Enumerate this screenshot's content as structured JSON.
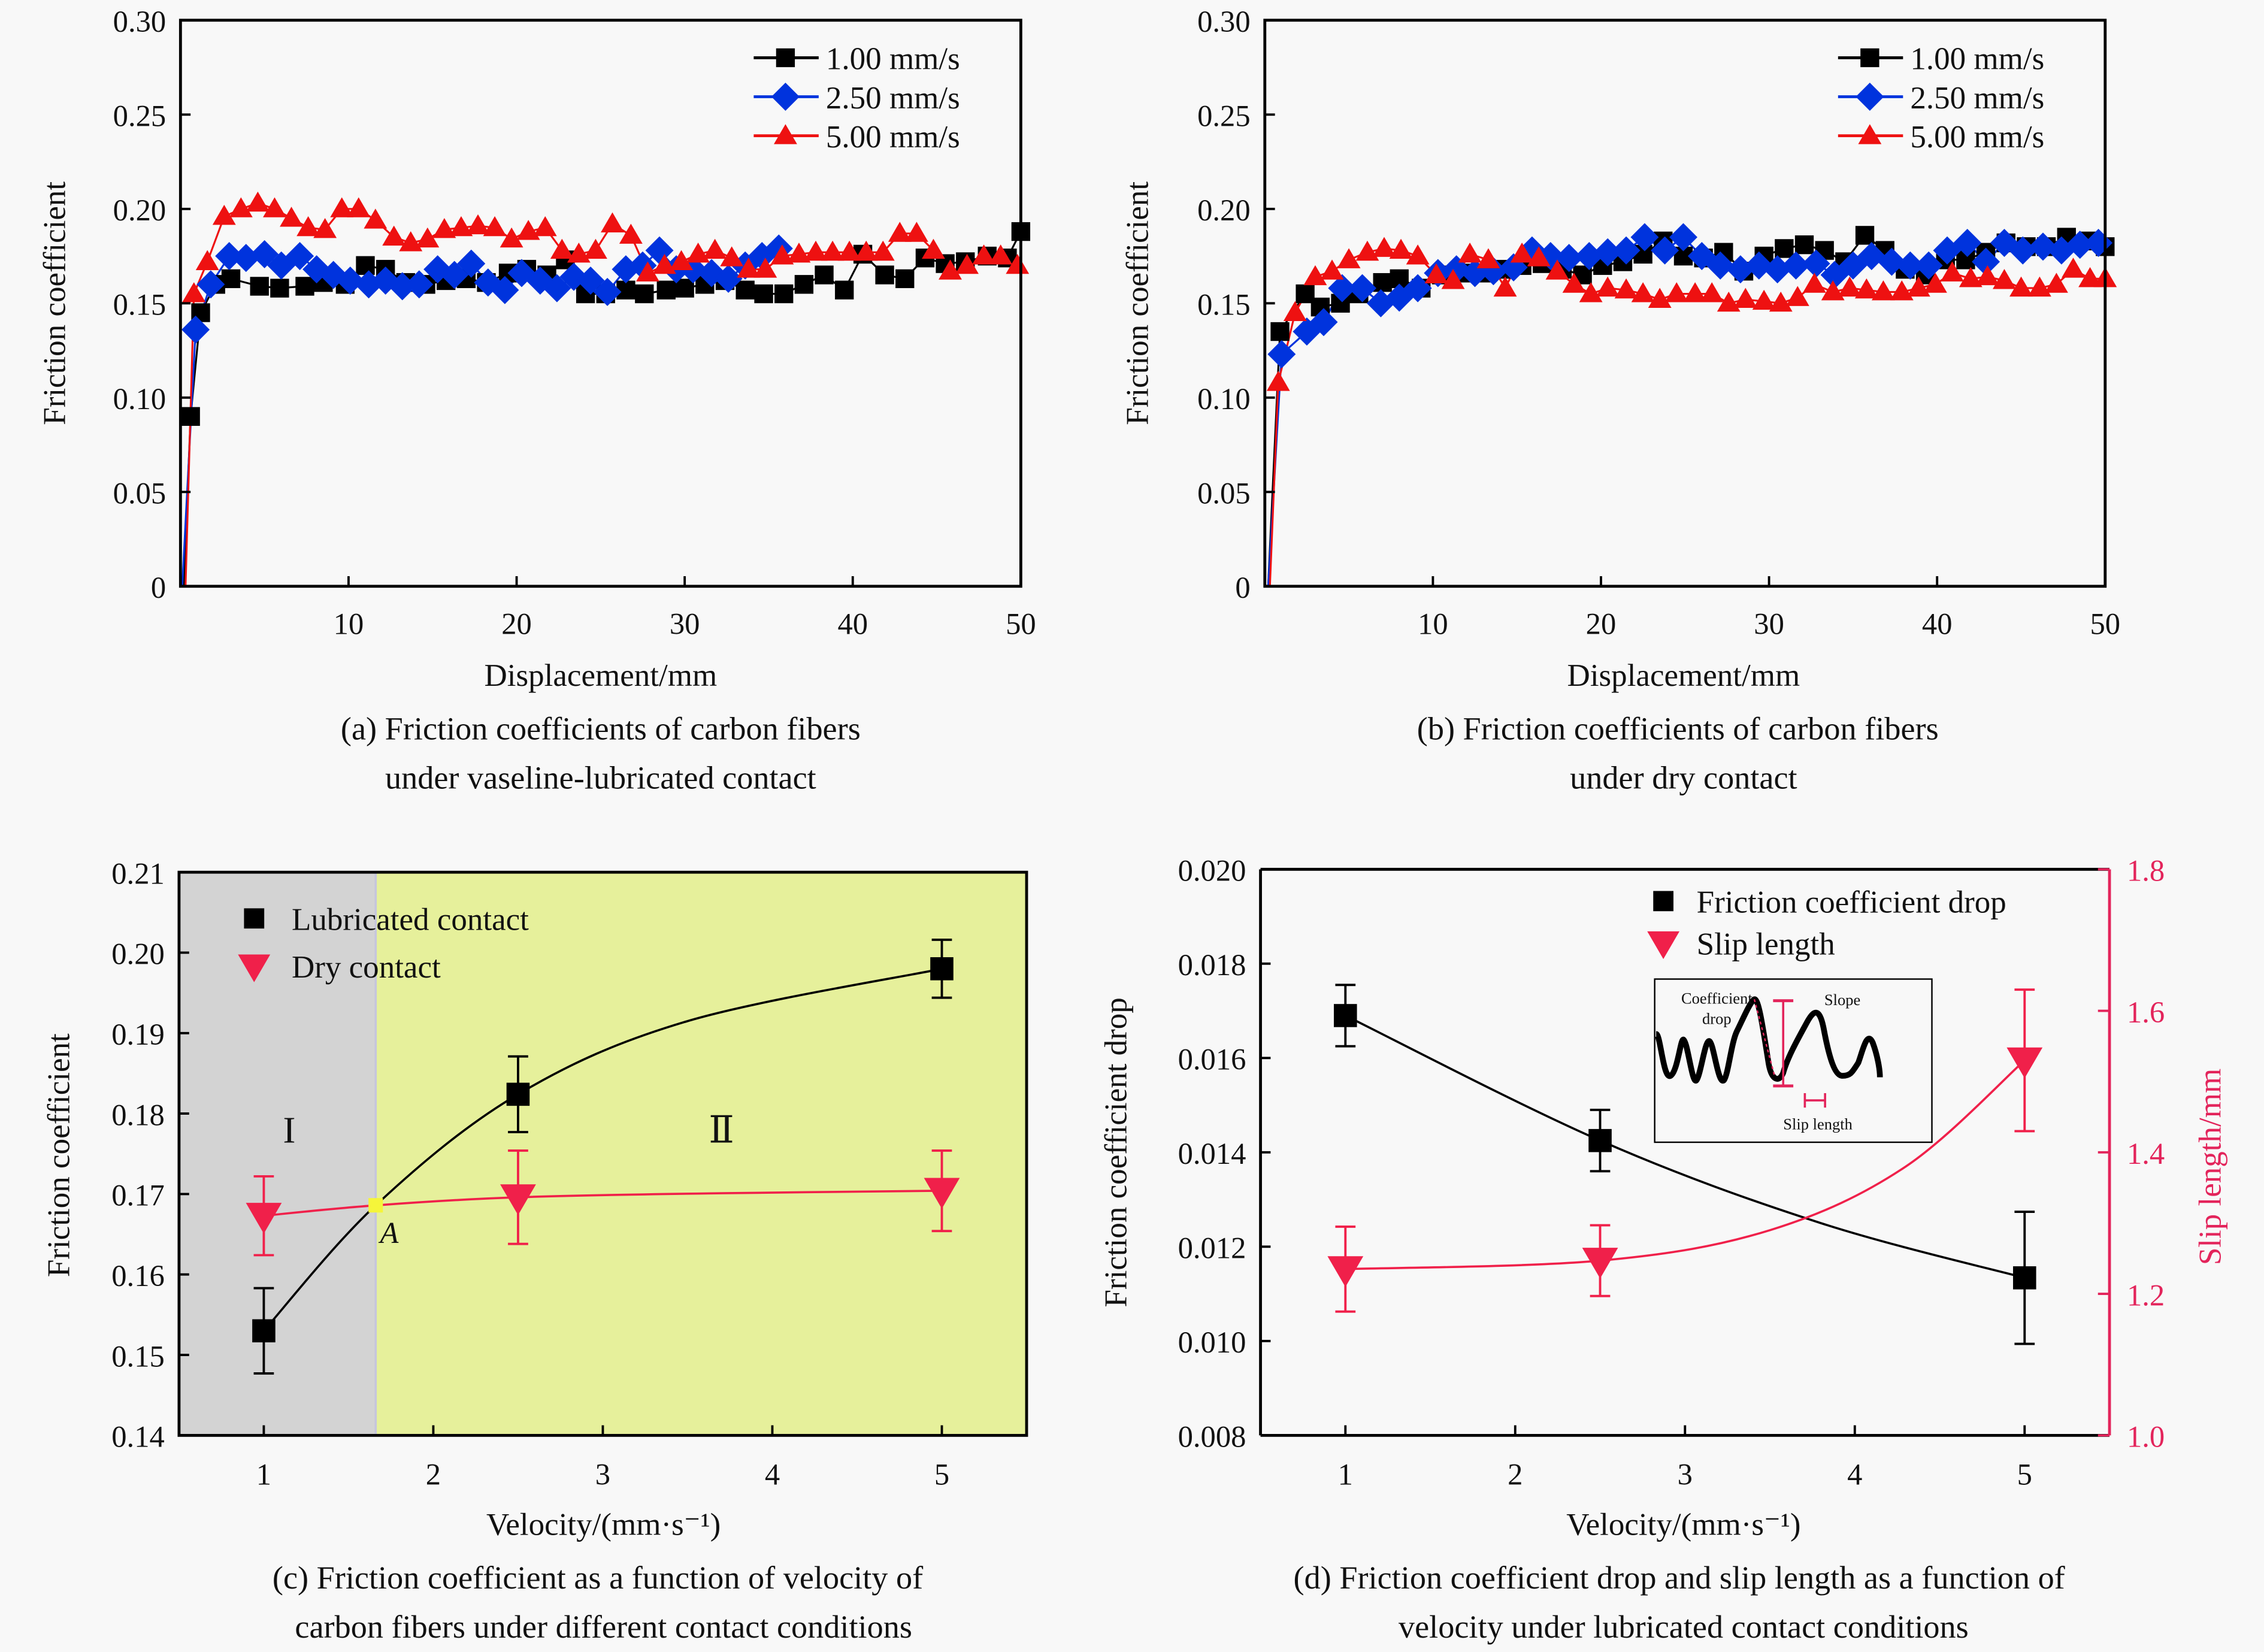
{
  "figure": {
    "background": "#f8f8f8",
    "captions": {
      "a": [
        "(a) Friction coefficients of carbon fibers",
        "under vaseline-lubricated contact"
      ],
      "b": [
        "(b) Friction coefficients of carbon fibers",
        "under dry contact"
      ],
      "c": [
        "(c) Friction coefficient as a function of velocity of",
        "carbon fibers under different contact conditions"
      ],
      "d": [
        "(d) Friction coefficient drop and slip length as a function of",
        "velocity under lubricated contact conditions"
      ]
    }
  },
  "chart_data": [
    {
      "id": "a",
      "type": "line",
      "title": "(a) Friction coefficients of carbon fibers under vaseline-lubricated contact",
      "xlabel": "Displacement/mm",
      "ylabel": "Friction coefficient",
      "xlim": [
        0,
        50
      ],
      "ylim": [
        0,
        0.3
      ],
      "xticks": [
        "10",
        "20",
        "30",
        "40",
        "50"
      ],
      "yticks": [
        "0",
        "0.05",
        "0.10",
        "0.15",
        "0.20",
        "0.25",
        "0.30"
      ],
      "legend_position": "top-right",
      "grid": false,
      "series": [
        {
          "name": "1.00 mm/s",
          "color": "#000000",
          "marker": "square",
          "x": [
            0.2,
            0.6,
            1.2,
            2.1,
            3.0,
            4.7,
            5.9,
            7.4,
            8.5,
            9.8,
            11.0,
            12.2,
            13.4,
            14.6,
            15.8,
            17.0,
            18.2,
            19.5,
            20.6,
            21.8,
            22.9,
            24.1,
            25.3,
            26.5,
            27.6,
            28.9,
            30.0,
            31.2,
            32.4,
            33.6,
            34.7,
            35.9,
            37.1,
            38.3,
            39.5,
            40.6,
            41.9,
            43.1,
            44.3,
            45.5,
            46.7,
            48.0,
            49.2,
            50.0
          ],
          "y": [
            0.0,
            0.09,
            0.145,
            0.16,
            0.163,
            0.159,
            0.158,
            0.159,
            0.161,
            0.16,
            0.17,
            0.168,
            0.161,
            0.16,
            0.162,
            0.163,
            0.161,
            0.166,
            0.168,
            0.165,
            0.173,
            0.155,
            0.155,
            0.157,
            0.155,
            0.157,
            0.158,
            0.16,
            0.162,
            0.157,
            0.155,
            0.155,
            0.16,
            0.165,
            0.157,
            0.176,
            0.165,
            0.163,
            0.174,
            0.171,
            0.172,
            0.175,
            0.174,
            0.188
          ]
        },
        {
          "name": "2.50 mm/s",
          "color": "#0033dd",
          "marker": "diamond",
          "x": [
            0.1,
            0.9,
            1.8,
            2.9,
            3.9,
            5.0,
            6.0,
            7.1,
            8.1,
            9.1,
            10.1,
            11.2,
            12.2,
            13.2,
            14.2,
            15.3,
            16.3,
            17.3,
            18.3,
            19.3,
            20.3,
            21.4,
            22.4,
            23.4,
            24.4,
            25.4,
            26.5,
            27.5,
            28.5,
            29.5,
            30.5,
            31.6,
            32.6,
            33.6,
            34.6,
            35.6
          ],
          "y": [
            0.0,
            0.136,
            0.16,
            0.175,
            0.174,
            0.176,
            0.17,
            0.175,
            0.168,
            0.165,
            0.162,
            0.16,
            0.162,
            0.159,
            0.16,
            0.168,
            0.165,
            0.171,
            0.161,
            0.157,
            0.166,
            0.162,
            0.158,
            0.164,
            0.162,
            0.156,
            0.168,
            0.17,
            0.178,
            0.168,
            0.168,
            0.166,
            0.163,
            0.17,
            0.175,
            0.179
          ]
        },
        {
          "name": "5.00 mm/s",
          "color": "#ee1111",
          "marker": "triangle-up",
          "x": [
            0.3,
            0.8,
            1.6,
            2.6,
            3.6,
            4.6,
            5.6,
            6.6,
            7.6,
            8.6,
            9.6,
            10.6,
            11.6,
            12.7,
            13.7,
            14.7,
            15.7,
            16.7,
            17.7,
            18.7,
            19.7,
            20.7,
            21.7,
            22.7,
            23.7,
            24.7,
            25.7,
            26.8,
            27.8,
            28.8,
            29.8,
            30.8,
            31.8,
            32.8,
            33.8,
            34.8,
            35.8,
            36.8,
            37.8,
            38.8,
            39.8,
            40.8,
            41.8,
            42.8,
            43.8,
            44.8,
            45.8,
            46.8,
            47.8,
            48.8,
            49.8
          ],
          "y": [
            0.0,
            0.155,
            0.172,
            0.196,
            0.2,
            0.203,
            0.2,
            0.195,
            0.19,
            0.189,
            0.2,
            0.2,
            0.194,
            0.185,
            0.182,
            0.184,
            0.189,
            0.19,
            0.191,
            0.19,
            0.184,
            0.188,
            0.19,
            0.178,
            0.176,
            0.178,
            0.192,
            0.186,
            0.166,
            0.17,
            0.172,
            0.176,
            0.178,
            0.174,
            0.168,
            0.168,
            0.175,
            0.176,
            0.177,
            0.177,
            0.177,
            0.177,
            0.177,
            0.187,
            0.187,
            0.178,
            0.167,
            0.17,
            0.175,
            0.175,
            0.17
          ]
        }
      ]
    },
    {
      "id": "b",
      "type": "line",
      "title": "(b) Friction coefficients of carbon fibers under dry contact",
      "xlabel": "Displacement/mm",
      "ylabel": "Friction coefficient",
      "xlim": [
        0,
        50
      ],
      "ylim": [
        0,
        0.3
      ],
      "xticks": [
        "10",
        "20",
        "30",
        "40",
        "50"
      ],
      "yticks": [
        "0",
        "0.05",
        "0.10",
        "0.15",
        "0.20",
        "0.25",
        "0.30"
      ],
      "legend_position": "top-right",
      "grid": false,
      "series": [
        {
          "name": "1.00 mm/s",
          "color": "#000000",
          "marker": "square",
          "x": [
            0.2,
            0.9,
            2.4,
            3.3,
            4.5,
            5.6,
            7.0,
            8.0,
            9.3,
            10.5,
            11.7,
            12.9,
            14.1,
            15.3,
            16.5,
            17.7,
            18.9,
            20.1,
            21.3,
            22.5,
            23.7,
            24.9,
            26.1,
            27.3,
            28.5,
            29.7,
            30.9,
            32.1,
            33.3,
            34.5,
            35.7,
            36.9,
            38.1,
            39.3,
            40.5,
            41.7,
            42.9,
            44.1,
            45.3,
            46.5,
            47.7,
            49.0,
            50.0
          ],
          "y": [
            0.0,
            0.135,
            0.155,
            0.148,
            0.15,
            0.155,
            0.161,
            0.163,
            0.158,
            0.165,
            0.166,
            0.166,
            0.168,
            0.17,
            0.171,
            0.168,
            0.165,
            0.17,
            0.172,
            0.176,
            0.183,
            0.175,
            0.174,
            0.177,
            0.167,
            0.175,
            0.179,
            0.181,
            0.178,
            0.172,
            0.186,
            0.178,
            0.168,
            0.165,
            0.173,
            0.173,
            0.177,
            0.182,
            0.18,
            0.18,
            0.185,
            0.183,
            0.18
          ]
        },
        {
          "name": "2.50 mm/s",
          "color": "#0033dd",
          "marker": "diamond",
          "x": [
            0.2,
            1.0,
            2.5,
            3.5,
            4.6,
            5.8,
            6.9,
            8.0,
            9.1,
            10.3,
            11.4,
            12.5,
            13.6,
            14.8,
            15.9,
            17.0,
            18.1,
            19.3,
            20.4,
            21.5,
            22.6,
            23.8,
            24.9,
            26.0,
            27.1,
            28.3,
            29.4,
            30.5,
            31.6,
            32.8,
            33.9,
            35.0,
            36.1,
            37.3,
            38.4,
            39.5,
            40.6,
            41.8,
            42.9,
            44.0,
            45.1,
            46.3,
            47.4,
            48.5,
            49.6
          ],
          "y": [
            0.0,
            0.123,
            0.135,
            0.14,
            0.158,
            0.158,
            0.15,
            0.153,
            0.158,
            0.166,
            0.168,
            0.166,
            0.167,
            0.169,
            0.178,
            0.175,
            0.174,
            0.175,
            0.177,
            0.178,
            0.185,
            0.178,
            0.185,
            0.175,
            0.17,
            0.168,
            0.17,
            0.168,
            0.17,
            0.171,
            0.165,
            0.17,
            0.175,
            0.172,
            0.17,
            0.17,
            0.178,
            0.182,
            0.172,
            0.182,
            0.178,
            0.18,
            0.178,
            0.181,
            0.182
          ]
        },
        {
          "name": "5.00 mm/s",
          "color": "#ee1111",
          "marker": "triangle-up",
          "x": [
            0.3,
            0.8,
            1.8,
            3.0,
            4.0,
            5.0,
            6.1,
            7.1,
            8.1,
            9.1,
            10.2,
            11.2,
            12.2,
            13.3,
            14.3,
            15.3,
            16.3,
            17.4,
            18.4,
            19.4,
            20.4,
            21.5,
            22.5,
            23.5,
            24.5,
            25.6,
            26.6,
            27.6,
            28.6,
            29.7,
            30.7,
            31.7,
            32.7,
            33.8,
            34.8,
            35.8,
            36.8,
            37.9,
            38.9,
            39.9,
            40.9,
            42.0,
            43.0,
            44.0,
            45.0,
            46.1,
            47.1,
            48.1,
            49.1,
            50.0
          ],
          "y": [
            0.0,
            0.108,
            0.145,
            0.164,
            0.167,
            0.173,
            0.177,
            0.179,
            0.178,
            0.175,
            0.165,
            0.162,
            0.176,
            0.173,
            0.158,
            0.176,
            0.174,
            0.167,
            0.16,
            0.155,
            0.158,
            0.157,
            0.155,
            0.152,
            0.155,
            0.155,
            0.155,
            0.15,
            0.152,
            0.151,
            0.15,
            0.153,
            0.16,
            0.156,
            0.158,
            0.157,
            0.156,
            0.156,
            0.158,
            0.16,
            0.166,
            0.163,
            0.164,
            0.162,
            0.158,
            0.158,
            0.16,
            0.168,
            0.163,
            0.163
          ]
        }
      ]
    },
    {
      "id": "c",
      "type": "scatter",
      "title": "(c) Friction coefficient as a function of velocity of carbon fibers under different contact conditions",
      "xlabel": "Velocity/(mm·s⁻¹)",
      "ylabel": "Friction coefficient",
      "xlim": [
        0.5,
        5.5
      ],
      "ylim": [
        0.14,
        0.21
      ],
      "xticks": [
        "1",
        "2",
        "3",
        "4",
        "5"
      ],
      "yticks": [
        "0.14",
        "0.15",
        "0.16",
        "0.17",
        "0.18",
        "0.19",
        "0.20",
        "0.21"
      ],
      "legend_position": "top-left",
      "grid": false,
      "regions": [
        {
          "label": "I",
          "x_from": 0.5,
          "x_to": 1.66,
          "color": "#d3d3d3",
          "label_x": 1.15,
          "label_y": 0.178
        },
        {
          "label": "Ⅱ",
          "x_from": 1.66,
          "x_to": 5.5,
          "color": "#e6f09b",
          "label_x": 3.7,
          "label_y": 0.178
        }
      ],
      "annotations": [
        {
          "text": "A",
          "x": 1.66,
          "y": 0.1686,
          "color": "#f5f53a"
        }
      ],
      "series": [
        {
          "name": "Lubricated contact",
          "color": "#000000",
          "marker": "square",
          "x": [
            1,
            2.5,
            5
          ],
          "y": [
            0.153,
            0.1824,
            0.198
          ],
          "err": [
            0.0053,
            0.0047,
            0.0036
          ],
          "fit": "saturating"
        },
        {
          "name": "Dry contact",
          "color": "#f0204a",
          "marker": "triangle-down",
          "x": [
            1,
            2.5,
            5
          ],
          "y": [
            0.1673,
            0.1696,
            0.1704
          ],
          "err": [
            0.0049,
            0.0058,
            0.005
          ],
          "fit": "saturating"
        }
      ]
    },
    {
      "id": "d",
      "type": "scatter",
      "title": "(d) Friction coefficient drop and slip length as a function of velocity under lubricated contact conditions",
      "xlabel": "Velocity/(mm·s⁻¹)",
      "ylabel": "Friction coefficient drop",
      "ylabel_right": "Slip length/mm",
      "xlim": [
        0.5,
        5.5
      ],
      "ylim": [
        0.008,
        0.02
      ],
      "ylim_right": [
        1.0,
        1.8
      ],
      "xticks": [
        "1",
        "2",
        "3",
        "4",
        "5"
      ],
      "yticks": [
        "0.008",
        "0.010",
        "0.012",
        "0.014",
        "0.016",
        "0.018",
        "0.020"
      ],
      "yticks_right": [
        "1.0",
        "1.2",
        "1.4",
        "1.6",
        "1.8"
      ],
      "right_axis_color": "#e3245b",
      "legend_position": "top-right",
      "grid": false,
      "inset": {
        "labels": {
          "drop": [
            "Coefficient",
            "drop"
          ],
          "slope": "Slope",
          "slip": "Slip length"
        }
      },
      "series": [
        {
          "name": "Friction coefficient drop",
          "axis": "left",
          "color": "#000000",
          "marker": "square",
          "x": [
            1,
            2.5,
            5
          ],
          "y": [
            0.0169,
            0.01425,
            0.01134
          ],
          "err": [
            0.00065,
            0.00065,
            0.0014
          ]
        },
        {
          "name": "Slip length",
          "axis": "right",
          "color": "#f0204a",
          "marker": "triangle-down",
          "x": [
            1,
            2.5,
            5
          ],
          "y": [
            1.235,
            1.247,
            1.53
          ],
          "err": [
            0.06,
            0.05,
            0.1
          ]
        }
      ]
    }
  ]
}
